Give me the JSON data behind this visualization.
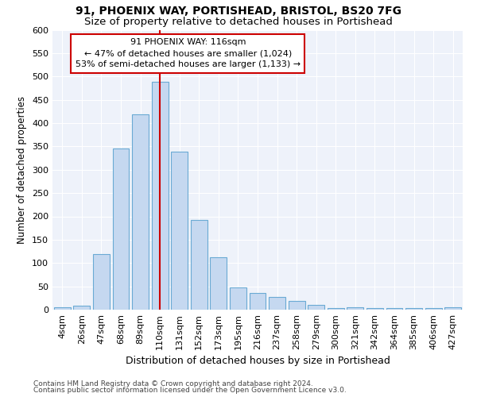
{
  "title1": "91, PHOENIX WAY, PORTISHEAD, BRISTOL, BS20 7FG",
  "title2": "Size of property relative to detached houses in Portishead",
  "xlabel": "Distribution of detached houses by size in Portishead",
  "ylabel": "Number of detached properties",
  "bar_labels": [
    "4sqm",
    "26sqm",
    "47sqm",
    "68sqm",
    "89sqm",
    "110sqm",
    "131sqm",
    "152sqm",
    "173sqm",
    "195sqm",
    "216sqm",
    "237sqm",
    "258sqm",
    "279sqm",
    "300sqm",
    "321sqm",
    "342sqm",
    "364sqm",
    "385sqm",
    "406sqm",
    "427sqm"
  ],
  "bar_values": [
    5,
    8,
    120,
    345,
    418,
    488,
    338,
    192,
    112,
    47,
    35,
    28,
    18,
    10,
    3,
    5,
    3,
    4,
    3,
    4,
    5
  ],
  "bar_color": "#c5d8f0",
  "bar_edge_color": "#6aaad4",
  "vline_x": 5,
  "vline_color": "#cc0000",
  "annotation_line1": "91 PHOENIX WAY: 116sqm",
  "annotation_line2": "← 47% of detached houses are smaller (1,024)",
  "annotation_line3": "53% of semi-detached houses are larger (1,133) →",
  "annotation_box_color": "#ffffff",
  "annotation_box_edge": "#cc0000",
  "ylim": [
    0,
    600
  ],
  "yticks": [
    0,
    50,
    100,
    150,
    200,
    250,
    300,
    350,
    400,
    450,
    500,
    550,
    600
  ],
  "footnote1": "Contains HM Land Registry data © Crown copyright and database right 2024.",
  "footnote2": "Contains public sector information licensed under the Open Government Licence v3.0.",
  "bg_color": "#eef2fa",
  "grid_color": "#ffffff",
  "title1_fontsize": 10,
  "title2_fontsize": 9.5,
  "xlabel_fontsize": 9,
  "ylabel_fontsize": 8.5,
  "tick_fontsize": 8
}
